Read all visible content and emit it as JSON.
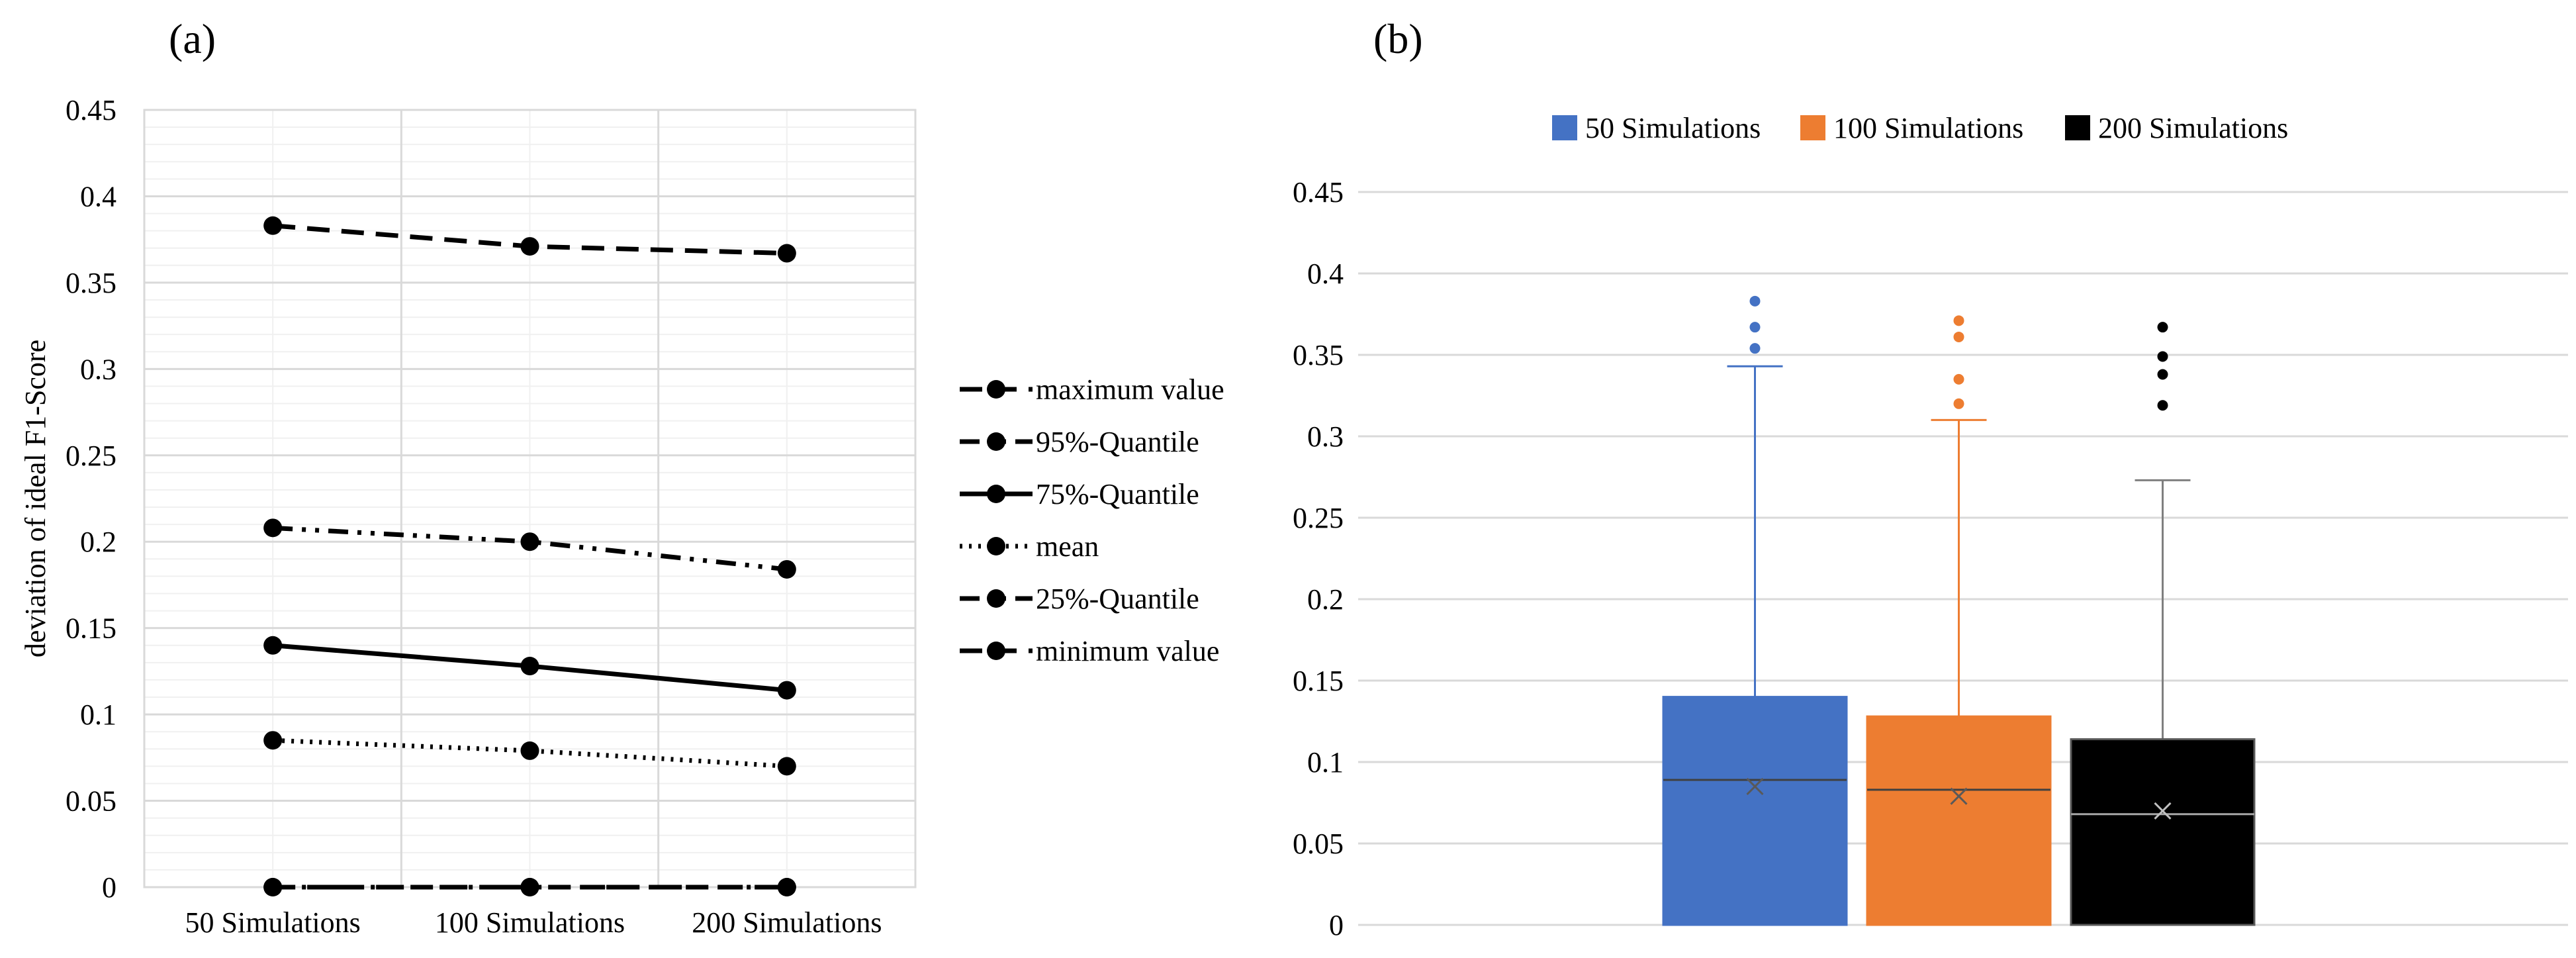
{
  "chart_data": [
    {
      "panel_label": "(a)",
      "type": "line",
      "categories": [
        "50 Simulations",
        "100 Simulations",
        "200 Simulations"
      ],
      "ylabel": "deviation of ideal F1-Score",
      "ylim": [
        0,
        0.45
      ],
      "yticks": [
        "0",
        "0.05",
        "0.1",
        "0.15",
        "0.2",
        "0.25",
        "0.3",
        "0.35",
        "0.4",
        "0.45"
      ],
      "grid": true,
      "legend_position": "right",
      "series": [
        {
          "name": "maximum value",
          "values": [
            0.383,
            0.371,
            0.367
          ],
          "dash": "long-dash"
        },
        {
          "name": "95%-Quantile",
          "values": [
            0.208,
            0.2,
            0.184
          ],
          "dash": "dash-dot-dot"
        },
        {
          "name": "75%-Quantile",
          "values": [
            0.14,
            0.128,
            0.114
          ],
          "dash": "solid"
        },
        {
          "name": "mean",
          "values": [
            0.085,
            0.079,
            0.07
          ],
          "dash": "dotted"
        },
        {
          "name": "25%-Quantile",
          "values": [
            0.0,
            0.0,
            0.0
          ],
          "dash": "dash-dot-dot"
        },
        {
          "name": "minimum value",
          "values": [
            0.0,
            0.0,
            0.0
          ],
          "dash": "long-dash"
        }
      ]
    },
    {
      "panel_label": "(b)",
      "type": "box",
      "ylim": [
        0,
        0.45
      ],
      "yticks": [
        "0",
        "0.05",
        "0.1",
        "0.15",
        "0.2",
        "0.25",
        "0.3",
        "0.35",
        "0.4",
        "0.45"
      ],
      "grid": true,
      "legend_position": "top",
      "series": [
        {
          "name": "50 Simulations",
          "color": "#4472C4",
          "whisker_color": "#4472C4",
          "min": 0,
          "q1": 0,
          "median": 0.089,
          "mean": 0.085,
          "q3": 0.14,
          "whisker_max": 0.343,
          "outliers": [
            0.354,
            0.367,
            0.383
          ]
        },
        {
          "name": "100 Simulations",
          "color": "#ED7D31",
          "whisker_color": "#ED7D31",
          "min": 0,
          "q1": 0,
          "median": 0.083,
          "mean": 0.079,
          "q3": 0.128,
          "whisker_max": 0.31,
          "outliers": [
            0.32,
            0.335,
            0.361,
            0.371
          ]
        },
        {
          "name": "200 Simulations",
          "color": "#000000",
          "whisker_color": "#7F7F7F",
          "min": 0,
          "q1": 0,
          "median": 0.068,
          "mean": 0.07,
          "q3": 0.114,
          "whisker_max": 0.273,
          "outliers": [
            0.319,
            0.338,
            0.349,
            0.367
          ]
        }
      ]
    }
  ]
}
